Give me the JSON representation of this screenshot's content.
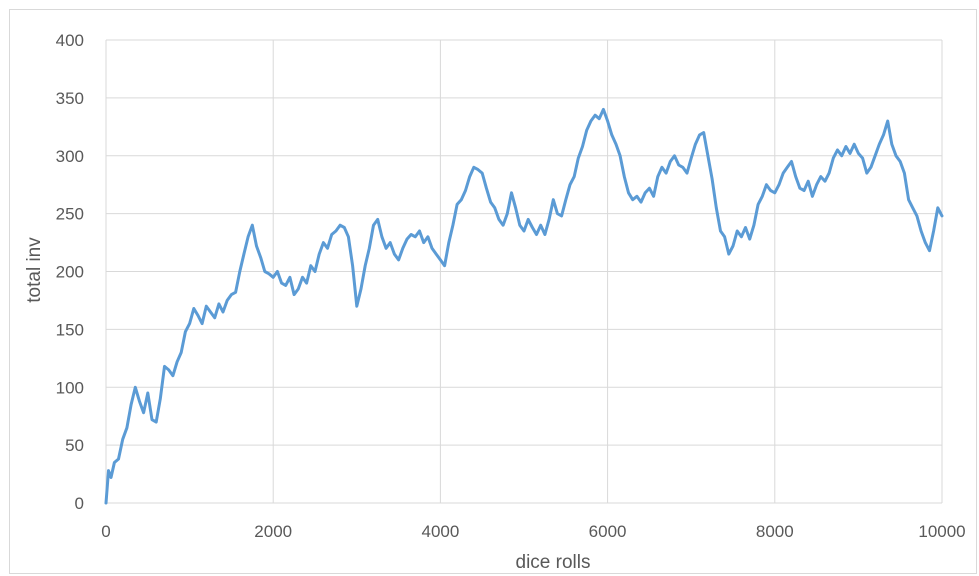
{
  "chart_data": {
    "type": "line",
    "title": "",
    "xlabel": "dice rolls",
    "ylabel": "total inv",
    "xlim": [
      0,
      10000
    ],
    "ylim": [
      0,
      400
    ],
    "x_ticks": [
      0,
      2000,
      4000,
      6000,
      8000,
      10000
    ],
    "y_ticks": [
      0,
      50,
      100,
      150,
      200,
      250,
      300,
      350,
      400
    ],
    "x_tick_labels": [
      "0",
      "2000",
      "4000",
      "6000",
      "8000",
      "10000"
    ],
    "y_tick_labels": [
      "0",
      "50",
      "100",
      "150",
      "200",
      "250",
      "300",
      "350",
      "400"
    ],
    "grid": true,
    "legend": "none",
    "series": [
      {
        "color": "#5b9bd5",
        "points": [
          [
            0,
            0
          ],
          [
            30,
            28
          ],
          [
            60,
            22
          ],
          [
            100,
            35
          ],
          [
            150,
            38
          ],
          [
            200,
            55
          ],
          [
            250,
            65
          ],
          [
            300,
            85
          ],
          [
            350,
            100
          ],
          [
            400,
            88
          ],
          [
            450,
            78
          ],
          [
            500,
            95
          ],
          [
            550,
            72
          ],
          [
            600,
            70
          ],
          [
            650,
            90
          ],
          [
            700,
            118
          ],
          [
            750,
            115
          ],
          [
            800,
            110
          ],
          [
            850,
            122
          ],
          [
            900,
            130
          ],
          [
            950,
            148
          ],
          [
            1000,
            155
          ],
          [
            1050,
            168
          ],
          [
            1100,
            162
          ],
          [
            1150,
            155
          ],
          [
            1200,
            170
          ],
          [
            1250,
            165
          ],
          [
            1300,
            160
          ],
          [
            1350,
            172
          ],
          [
            1400,
            165
          ],
          [
            1450,
            175
          ],
          [
            1500,
            180
          ],
          [
            1550,
            182
          ],
          [
            1600,
            200
          ],
          [
            1650,
            215
          ],
          [
            1700,
            230
          ],
          [
            1750,
            240
          ],
          [
            1800,
            222
          ],
          [
            1850,
            212
          ],
          [
            1900,
            200
          ],
          [
            1950,
            198
          ],
          [
            2000,
            195
          ],
          [
            2050,
            200
          ],
          [
            2100,
            190
          ],
          [
            2150,
            188
          ],
          [
            2200,
            195
          ],
          [
            2250,
            180
          ],
          [
            2300,
            185
          ],
          [
            2350,
            195
          ],
          [
            2400,
            190
          ],
          [
            2450,
            205
          ],
          [
            2500,
            200
          ],
          [
            2550,
            215
          ],
          [
            2600,
            225
          ],
          [
            2650,
            220
          ],
          [
            2700,
            232
          ],
          [
            2750,
            235
          ],
          [
            2800,
            240
          ],
          [
            2850,
            238
          ],
          [
            2900,
            230
          ],
          [
            2950,
            205
          ],
          [
            3000,
            170
          ],
          [
            3050,
            185
          ],
          [
            3100,
            205
          ],
          [
            3150,
            220
          ],
          [
            3200,
            240
          ],
          [
            3250,
            245
          ],
          [
            3300,
            230
          ],
          [
            3350,
            220
          ],
          [
            3400,
            225
          ],
          [
            3450,
            215
          ],
          [
            3500,
            210
          ],
          [
            3550,
            220
          ],
          [
            3600,
            228
          ],
          [
            3650,
            232
          ],
          [
            3700,
            230
          ],
          [
            3750,
            235
          ],
          [
            3800,
            225
          ],
          [
            3850,
            230
          ],
          [
            3900,
            220
          ],
          [
            3950,
            215
          ],
          [
            4000,
            210
          ],
          [
            4050,
            205
          ],
          [
            4100,
            225
          ],
          [
            4150,
            240
          ],
          [
            4200,
            258
          ],
          [
            4250,
            262
          ],
          [
            4300,
            270
          ],
          [
            4350,
            282
          ],
          [
            4400,
            290
          ],
          [
            4450,
            288
          ],
          [
            4500,
            285
          ],
          [
            4550,
            272
          ],
          [
            4600,
            260
          ],
          [
            4650,
            255
          ],
          [
            4700,
            245
          ],
          [
            4750,
            240
          ],
          [
            4800,
            250
          ],
          [
            4850,
            268
          ],
          [
            4900,
            255
          ],
          [
            4950,
            240
          ],
          [
            5000,
            235
          ],
          [
            5050,
            245
          ],
          [
            5100,
            238
          ],
          [
            5150,
            232
          ],
          [
            5200,
            240
          ],
          [
            5250,
            232
          ],
          [
            5300,
            245
          ],
          [
            5350,
            262
          ],
          [
            5400,
            250
          ],
          [
            5450,
            248
          ],
          [
            5500,
            262
          ],
          [
            5550,
            275
          ],
          [
            5600,
            282
          ],
          [
            5650,
            298
          ],
          [
            5700,
            308
          ],
          [
            5750,
            322
          ],
          [
            5800,
            330
          ],
          [
            5850,
            335
          ],
          [
            5900,
            332
          ],
          [
            5950,
            340
          ],
          [
            6000,
            330
          ],
          [
            6050,
            318
          ],
          [
            6100,
            310
          ],
          [
            6150,
            300
          ],
          [
            6200,
            282
          ],
          [
            6250,
            268
          ],
          [
            6300,
            262
          ],
          [
            6350,
            265
          ],
          [
            6400,
            260
          ],
          [
            6450,
            268
          ],
          [
            6500,
            272
          ],
          [
            6550,
            265
          ],
          [
            6600,
            282
          ],
          [
            6650,
            290
          ],
          [
            6700,
            285
          ],
          [
            6750,
            295
          ],
          [
            6800,
            300
          ],
          [
            6850,
            292
          ],
          [
            6900,
            290
          ],
          [
            6950,
            285
          ],
          [
            7000,
            298
          ],
          [
            7050,
            310
          ],
          [
            7100,
            318
          ],
          [
            7150,
            320
          ],
          [
            7200,
            300
          ],
          [
            7250,
            280
          ],
          [
            7300,
            255
          ],
          [
            7350,
            235
          ],
          [
            7400,
            230
          ],
          [
            7450,
            215
          ],
          [
            7500,
            222
          ],
          [
            7550,
            235
          ],
          [
            7600,
            230
          ],
          [
            7650,
            238
          ],
          [
            7700,
            228
          ],
          [
            7750,
            240
          ],
          [
            7800,
            258
          ],
          [
            7850,
            265
          ],
          [
            7900,
            275
          ],
          [
            7950,
            270
          ],
          [
            8000,
            268
          ],
          [
            8050,
            275
          ],
          [
            8100,
            285
          ],
          [
            8150,
            290
          ],
          [
            8200,
            295
          ],
          [
            8250,
            282
          ],
          [
            8300,
            272
          ],
          [
            8350,
            270
          ],
          [
            8400,
            278
          ],
          [
            8450,
            265
          ],
          [
            8500,
            275
          ],
          [
            8550,
            282
          ],
          [
            8600,
            278
          ],
          [
            8650,
            285
          ],
          [
            8700,
            298
          ],
          [
            8750,
            305
          ],
          [
            8800,
            300
          ],
          [
            8850,
            308
          ],
          [
            8900,
            302
          ],
          [
            8950,
            310
          ],
          [
            9000,
            302
          ],
          [
            9050,
            298
          ],
          [
            9100,
            285
          ],
          [
            9150,
            290
          ],
          [
            9200,
            300
          ],
          [
            9250,
            310
          ],
          [
            9300,
            318
          ],
          [
            9350,
            330
          ],
          [
            9400,
            310
          ],
          [
            9450,
            300
          ],
          [
            9500,
            295
          ],
          [
            9550,
            285
          ],
          [
            9600,
            262
          ],
          [
            9650,
            255
          ],
          [
            9700,
            248
          ],
          [
            9750,
            235
          ],
          [
            9800,
            225
          ],
          [
            9850,
            218
          ],
          [
            9900,
            235
          ],
          [
            9950,
            255
          ],
          [
            10000,
            248
          ]
        ]
      }
    ]
  }
}
